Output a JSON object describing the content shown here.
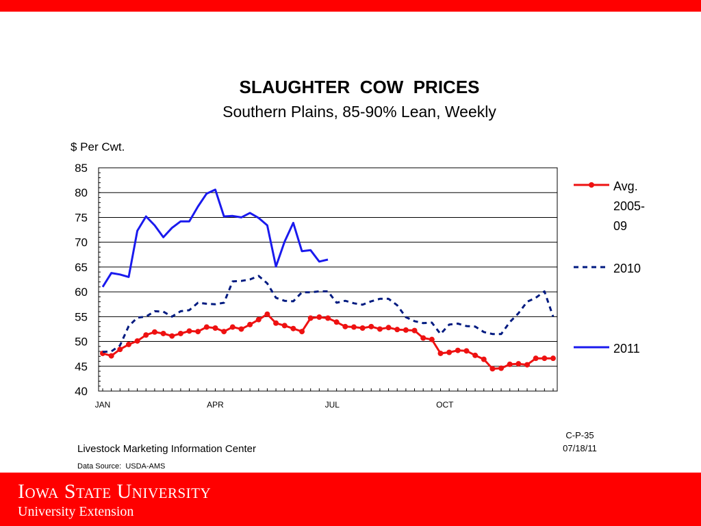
{
  "slide": {
    "code": "C-P-35",
    "date": "07/18/11",
    "org": "Livestock Marketing Information Center",
    "source": "Data Source:  USDA-AMS",
    "footer_name": "Iowa State University",
    "footer_ext": "University Extension"
  },
  "colors": {
    "accent": "#ff0000",
    "avg": "#ee1111",
    "s2010": "#001a80",
    "s2011": "#1a1aee"
  },
  "chart_data": {
    "type": "line",
    "title": "SLAUGHTER  COW  PRICES",
    "subtitle": "Southern Plains, 85-90% Lean, Weekly",
    "ylabel": "$ Per Cwt.",
    "xlabel": "",
    "ylim": [
      40,
      85
    ],
    "yticks": [
      40,
      45,
      50,
      55,
      60,
      65,
      70,
      75,
      80,
      85
    ],
    "xlim": [
      1,
      53
    ],
    "xticks": [
      {
        "week": 1,
        "label": "JAN"
      },
      {
        "week": 14,
        "label": "APR"
      },
      {
        "week": 27.5,
        "label": "JUL"
      },
      {
        "week": 40.5,
        "label": "OCT"
      }
    ],
    "grid": true,
    "legend_position": "right",
    "series": [
      {
        "name": "Avg. 2005-09",
        "style": "solid-markers",
        "x": [
          1,
          2,
          3,
          4,
          5,
          6,
          7,
          8,
          9,
          10,
          11,
          12,
          13,
          14,
          15,
          16,
          17,
          18,
          19,
          20,
          21,
          22,
          23,
          24,
          25,
          26,
          27,
          28,
          29,
          30,
          31,
          32,
          33,
          34,
          35,
          36,
          37,
          38,
          39,
          40,
          41,
          42,
          43,
          44,
          45,
          46,
          47,
          48,
          49,
          50,
          51,
          52,
          53
        ],
        "values": [
          47.6,
          47.1,
          48.4,
          49.4,
          50.1,
          51.3,
          51.9,
          51.6,
          51.1,
          51.6,
          52.1,
          52.0,
          52.9,
          52.7,
          52.0,
          52.9,
          52.5,
          53.4,
          54.4,
          55.5,
          53.7,
          53.2,
          52.6,
          52.0,
          54.7,
          54.9,
          54.7,
          53.9,
          53.0,
          52.9,
          52.7,
          53.0,
          52.5,
          52.8,
          52.4,
          52.3,
          52.2,
          50.7,
          50.4,
          47.6,
          47.8,
          48.2,
          48.1,
          47.2,
          46.4,
          44.5,
          44.6,
          45.4,
          45.5,
          45.3,
          46.6,
          46.6,
          46.6
        ]
      },
      {
        "name": "2010",
        "style": "dashed",
        "x": [
          1,
          2,
          3,
          4,
          5,
          6,
          7,
          8,
          9,
          10,
          11,
          12,
          13,
          14,
          15,
          16,
          17,
          18,
          19,
          20,
          21,
          22,
          23,
          24,
          25,
          26,
          27,
          28,
          29,
          30,
          31,
          32,
          33,
          34,
          35,
          36,
          37,
          38,
          39,
          40,
          41,
          42,
          43,
          44,
          45,
          46,
          47,
          48,
          49,
          50,
          51,
          52,
          53
        ],
        "values": [
          47.9,
          48.0,
          49.2,
          53.1,
          54.8,
          55.0,
          56.1,
          56.0,
          55.0,
          56.1,
          56.3,
          57.8,
          57.6,
          57.5,
          57.8,
          62.1,
          62.2,
          62.5,
          63.2,
          61.7,
          58.8,
          58.2,
          58.1,
          59.9,
          59.9,
          60.1,
          60.1,
          57.8,
          58.2,
          57.7,
          57.4,
          58.1,
          58.6,
          58.6,
          57.3,
          54.9,
          54.1,
          53.7,
          53.8,
          51.5,
          53.4,
          53.6,
          53.1,
          53.0,
          51.9,
          51.5,
          51.5,
          53.9,
          55.7,
          58.0,
          58.8,
          60.1,
          55.0
        ]
      },
      {
        "name": "2011",
        "style": "solid",
        "x": [
          1,
          2,
          3,
          4,
          5,
          6,
          7,
          8,
          9,
          10,
          11,
          12,
          13,
          14,
          15,
          16,
          17,
          18,
          19,
          20,
          21,
          22,
          23,
          24,
          25,
          26,
          27
        ],
        "values": [
          61.0,
          63.8,
          63.5,
          63.0,
          72.3,
          75.2,
          73.4,
          71.0,
          72.9,
          74.2,
          74.2,
          77.2,
          79.8,
          80.6,
          75.2,
          75.3,
          75.0,
          75.9,
          74.9,
          73.4,
          65.1,
          70.1,
          73.9,
          68.2,
          68.4,
          66.1,
          66.5
        ]
      }
    ]
  }
}
